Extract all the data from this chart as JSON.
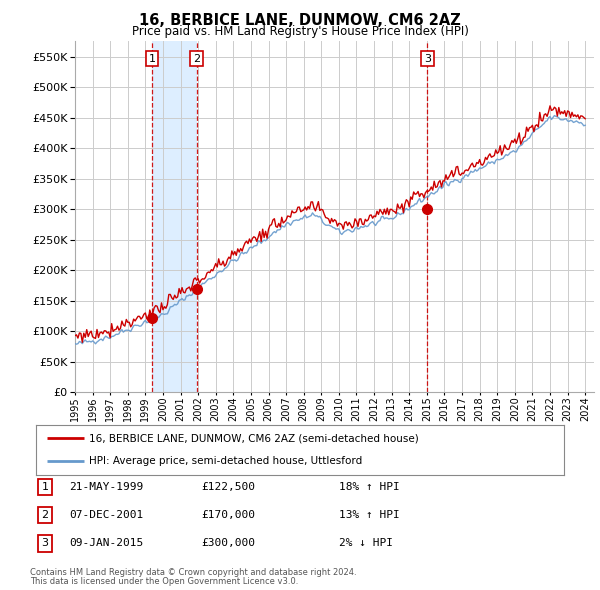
{
  "title": "16, BERBICE LANE, DUNMOW, CM6 2AZ",
  "subtitle": "Price paid vs. HM Land Registry's House Price Index (HPI)",
  "ytick_values": [
    0,
    50000,
    100000,
    150000,
    200000,
    250000,
    300000,
    350000,
    400000,
    450000,
    500000,
    550000
  ],
  "ylim": [
    0,
    575000
  ],
  "xlim_start": 1995.0,
  "xlim_end": 2024.5,
  "transactions": [
    {
      "num": 1,
      "date": "21-MAY-1999",
      "price": 122500,
      "year": 1999.38,
      "pct": "18%",
      "dir": "↑"
    },
    {
      "num": 2,
      "date": "07-DEC-2001",
      "price": 170000,
      "year": 2001.92,
      "pct": "13%",
      "dir": "↑"
    },
    {
      "num": 3,
      "date": "09-JAN-2015",
      "price": 300000,
      "year": 2015.03,
      "pct": "2%",
      "dir": "↓"
    }
  ],
  "legend_line1": "16, BERBICE LANE, DUNMOW, CM6 2AZ (semi-detached house)",
  "legend_line2": "HPI: Average price, semi-detached house, Uttlesford",
  "footer1": "Contains HM Land Registry data © Crown copyright and database right 2024.",
  "footer2": "This data is licensed under the Open Government Licence v3.0.",
  "price_line_color": "#cc0000",
  "hpi_line_color": "#6699cc",
  "vline_color": "#cc0000",
  "shade_color": "#ddeeff",
  "grid_color": "#cccccc",
  "background_color": "#ffffff",
  "table_rows": [
    {
      "num": "1",
      "date": "21-MAY-1999",
      "price": "£122,500",
      "pct": "18% ↑ HPI"
    },
    {
      "num": "2",
      "date": "07-DEC-2001",
      "price": "£170,000",
      "pct": "13% ↑ HPI"
    },
    {
      "num": "3",
      "date": "09-JAN-2015",
      "price": "£300,000",
      "pct": "2% ↓ HPI"
    }
  ]
}
